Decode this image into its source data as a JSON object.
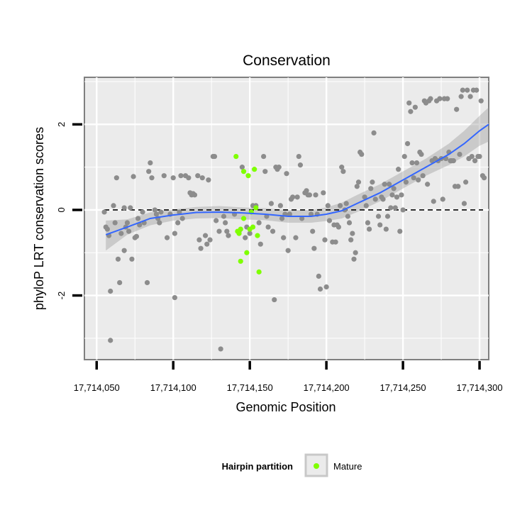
{
  "chart_data": {
    "type": "scatter",
    "title": "Conservation",
    "xlabel": "Genomic Position",
    "ylabel": "phyloP LRT conservation scores",
    "xlim": [
      17714042,
      17714306
    ],
    "ylim": [
      -3.5,
      3.1
    ],
    "x_ticks": [
      {
        "value": 17714050,
        "label": "17,714,050"
      },
      {
        "value": 17714100,
        "label": "17,714,100"
      },
      {
        "value": 17714150,
        "label": "17,714,150"
      },
      {
        "value": 17714200,
        "label": "17,714,200"
      },
      {
        "value": 17714250,
        "label": "17,714,250"
      },
      {
        "value": 17714300,
        "label": "17,714,300"
      }
    ],
    "y_ticks": [
      {
        "value": -2,
        "label": "-2"
      },
      {
        "value": 0,
        "label": "0"
      },
      {
        "value": 2,
        "label": "2"
      }
    ],
    "reference_line": {
      "y": 0,
      "style": "dashed",
      "color": "#000000"
    },
    "grid": true,
    "panel_background": "#ebebeb",
    "gray_points": {
      "color": "#8c8c8c",
      "points": [
        [
          17714055,
          -0.05
        ],
        [
          17714056,
          -0.4
        ],
        [
          17714057,
          -0.45
        ],
        [
          17714058,
          -0.6
        ],
        [
          17714059,
          -1.9
        ],
        [
          17714059,
          -3.05
        ],
        [
          17714061,
          0.1
        ],
        [
          17714062,
          -0.3
        ],
        [
          17714063,
          0.75
        ],
        [
          17714064,
          -1.15
        ],
        [
          17714065,
          -1.7
        ],
        [
          17714066,
          -0.55
        ],
        [
          17714068,
          -0.95
        ],
        [
          17714068,
          0.05
        ],
        [
          17714069,
          -0.4
        ],
        [
          17714070,
          -0.3
        ],
        [
          17714071,
          -0.5
        ],
        [
          17714072,
          0.05
        ],
        [
          17714073,
          -1.15
        ],
        [
          17714074,
          0.78
        ],
        [
          17714075,
          -0.65
        ],
        [
          17714076,
          -0.62
        ],
        [
          17714077,
          -0.2
        ],
        [
          17714078,
          -0.35
        ],
        [
          17714080,
          -0.05
        ],
        [
          17714081,
          -0.3
        ],
        [
          17714083,
          -1.7
        ],
        [
          17714084,
          0.9
        ],
        [
          17714085,
          1.1
        ],
        [
          17714086,
          0.75
        ],
        [
          17714088,
          0.0
        ],
        [
          17714089,
          -0.1
        ],
        [
          17714090,
          -0.2
        ],
        [
          17714091,
          -0.3
        ],
        [
          17714092,
          -0.05
        ],
        [
          17714094,
          0.8
        ],
        [
          17714096,
          -0.65
        ],
        [
          17714098,
          -0.1
        ],
        [
          17714100,
          0.75
        ],
        [
          17714101,
          -2.05
        ],
        [
          17714101,
          -0.55
        ],
        [
          17714103,
          -0.3
        ],
        [
          17714104,
          -0.05
        ],
        [
          17714105,
          0.8
        ],
        [
          17714106,
          -0.2
        ],
        [
          17714108,
          0.8
        ],
        [
          17714110,
          0.75
        ],
        [
          17714111,
          0.4
        ],
        [
          17714112,
          0.35
        ],
        [
          17714113,
          0.38
        ],
        [
          17714114,
          0.35
        ],
        [
          17714116,
          0.8
        ],
        [
          17714117,
          -0.7
        ],
        [
          17714118,
          -0.9
        ],
        [
          17714119,
          0.75
        ],
        [
          17714121,
          -0.6
        ],
        [
          17714122,
          -0.8
        ],
        [
          17714123,
          0.7
        ],
        [
          17714124,
          -0.7
        ],
        [
          17714126,
          1.25
        ],
        [
          17714127,
          1.25
        ],
        [
          17714128,
          -0.25
        ],
        [
          17714130,
          -0.5
        ],
        [
          17714131,
          -3.25
        ],
        [
          17714133,
          -0.15
        ],
        [
          17714134,
          -0.3
        ],
        [
          17714135,
          -0.5
        ],
        [
          17714136,
          -0.6
        ],
        [
          17714140,
          -0.1
        ],
        [
          17714143,
          -0.5
        ],
        [
          17714145,
          1.0
        ],
        [
          17714147,
          -0.65
        ],
        [
          17714148,
          -0.4
        ],
        [
          17714150,
          -0.55
        ],
        [
          17714152,
          0.1
        ],
        [
          17714154,
          0.1
        ],
        [
          17714156,
          -0.3
        ],
        [
          17714157,
          -0.8
        ],
        [
          17714159,
          1.25
        ],
        [
          17714160,
          0.9
        ],
        [
          17714161,
          -0.15
        ],
        [
          17714162,
          -0.4
        ],
        [
          17714164,
          0.15
        ],
        [
          17714165,
          -0.5
        ],
        [
          17714166,
          -2.1
        ],
        [
          17714167,
          1.0
        ],
        [
          17714168,
          0.95
        ],
        [
          17714169,
          1.0
        ],
        [
          17714170,
          0.1
        ],
        [
          17714171,
          -0.2
        ],
        [
          17714172,
          -0.65
        ],
        [
          17714173,
          -0.1
        ],
        [
          17714174,
          0.85
        ],
        [
          17714175,
          -0.95
        ],
        [
          17714176,
          -0.1
        ],
        [
          17714177,
          0.25
        ],
        [
          17714178,
          0.3
        ],
        [
          17714180,
          -0.65
        ],
        [
          17714181,
          0.3
        ],
        [
          17714182,
          1.25
        ],
        [
          17714183,
          1.05
        ],
        [
          17714184,
          -0.2
        ],
        [
          17714186,
          0.4
        ],
        [
          17714187,
          0.45
        ],
        [
          17714188,
          0.35
        ],
        [
          17714189,
          0.35
        ],
        [
          17714190,
          -0.1
        ],
        [
          17714191,
          -0.5
        ],
        [
          17714192,
          -0.9
        ],
        [
          17714193,
          0.35
        ],
        [
          17714194,
          -0.1
        ],
        [
          17714195,
          -1.55
        ],
        [
          17714196,
          -1.85
        ],
        [
          17714198,
          0.4
        ],
        [
          17714199,
          -0.7
        ],
        [
          17714200,
          -1.8
        ],
        [
          17714201,
          0.1
        ],
        [
          17714202,
          -0.25
        ],
        [
          17714204,
          -0.75
        ],
        [
          17714205,
          -0.35
        ],
        [
          17714206,
          -0.75
        ],
        [
          17714207,
          -0.35
        ],
        [
          17714208,
          -0.4
        ],
        [
          17714209,
          0.1
        ],
        [
          17714210,
          1.0
        ],
        [
          17714211,
          0.9
        ],
        [
          17714212,
          0.0
        ],
        [
          17714213,
          0.15
        ],
        [
          17714214,
          -0.15
        ],
        [
          17714215,
          -0.3
        ],
        [
          17714216,
          -0.7
        ],
        [
          17714217,
          -0.55
        ],
        [
          17714218,
          -1.15
        ],
        [
          17714219,
          -1.0
        ],
        [
          17714220,
          0.55
        ],
        [
          17714221,
          0.65
        ],
        [
          17714222,
          1.35
        ],
        [
          17714223,
          1.3
        ],
        [
          17714225,
          0.3
        ],
        [
          17714226,
          0.1
        ],
        [
          17714227,
          -0.3
        ],
        [
          17714228,
          -0.45
        ],
        [
          17714229,
          0.5
        ],
        [
          17714230,
          0.65
        ],
        [
          17714231,
          1.8
        ],
        [
          17714232,
          0.25
        ],
        [
          17714234,
          -0.15
        ],
        [
          17714235,
          -0.35
        ],
        [
          17714236,
          0.3
        ],
        [
          17714237,
          0.25
        ],
        [
          17714238,
          0.6
        ],
        [
          17714239,
          -0.45
        ],
        [
          17714240,
          -0.15
        ],
        [
          17714241,
          0.6
        ],
        [
          17714242,
          0.05
        ],
        [
          17714243,
          0.35
        ],
        [
          17714244,
          0.5
        ],
        [
          17714245,
          0.05
        ],
        [
          17714246,
          0.3
        ],
        [
          17714247,
          0.95
        ],
        [
          17714248,
          -0.5
        ],
        [
          17714249,
          0.35
        ],
        [
          17714250,
          0.0
        ],
        [
          17714251,
          1.25
        ],
        [
          17714252,
          0.65
        ],
        [
          17714253,
          1.55
        ],
        [
          17714254,
          2.5
        ],
        [
          17714255,
          2.3
        ],
        [
          17714256,
          1.1
        ],
        [
          17714257,
          0.75
        ],
        [
          17714258,
          2.4
        ],
        [
          17714259,
          1.1
        ],
        [
          17714260,
          0.7
        ],
        [
          17714261,
          1.35
        ],
        [
          17714262,
          1.3
        ],
        [
          17714263,
          0.8
        ],
        [
          17714264,
          2.55
        ],
        [
          17714265,
          2.5
        ],
        [
          17714266,
          0.6
        ],
        [
          17714267,
          2.55
        ],
        [
          17714268,
          2.6
        ],
        [
          17714269,
          1.15
        ],
        [
          17714270,
          0.2
        ],
        [
          17714271,
          1.2
        ],
        [
          17714272,
          2.55
        ],
        [
          17714273,
          1.15
        ],
        [
          17714274,
          2.6
        ],
        [
          17714275,
          1.2
        ],
        [
          17714276,
          0.25
        ],
        [
          17714277,
          2.6
        ],
        [
          17714278,
          1.2
        ],
        [
          17714279,
          2.6
        ],
        [
          17714280,
          1.35
        ],
        [
          17714281,
          1.15
        ],
        [
          17714282,
          1.15
        ],
        [
          17714283,
          1.15
        ],
        [
          17714284,
          0.55
        ],
        [
          17714285,
          2.35
        ],
        [
          17714286,
          0.55
        ],
        [
          17714287,
          1.3
        ],
        [
          17714288,
          2.65
        ],
        [
          17714289,
          2.8
        ],
        [
          17714290,
          0.15
        ],
        [
          17714291,
          0.65
        ],
        [
          17714292,
          2.8
        ],
        [
          17714293,
          1.2
        ],
        [
          17714294,
          2.65
        ],
        [
          17714295,
          1.25
        ],
        [
          17714296,
          2.8
        ],
        [
          17714297,
          1.15
        ],
        [
          17714298,
          2.8
        ],
        [
          17714299,
          1.25
        ],
        [
          17714300,
          1.25
        ],
        [
          17714301,
          2.55
        ],
        [
          17714302,
          0.8
        ],
        [
          17714303,
          0.75
        ]
      ]
    },
    "mature_points": {
      "color": "#7fff00",
      "points": [
        [
          17714141,
          1.25
        ],
        [
          17714146,
          0.9
        ],
        [
          17714149,
          0.8
        ],
        [
          17714153,
          0.95
        ],
        [
          17714142,
          -0.5
        ],
        [
          17714143,
          -0.55
        ],
        [
          17714144,
          -0.45
        ],
        [
          17714146,
          -0.2
        ],
        [
          17714148,
          -1.0
        ],
        [
          17714144,
          -1.2
        ],
        [
          17714150,
          -0.45
        ],
        [
          17714152,
          -0.4
        ],
        [
          17714155,
          -0.6
        ],
        [
          17714156,
          -1.45
        ],
        [
          17714151,
          -0.05
        ],
        [
          17714154,
          0.05
        ]
      ]
    },
    "smooth_line": {
      "color": "#3366ff",
      "band_color": "#999999",
      "x": [
        17714056,
        17714070,
        17714085,
        17714100,
        17714115,
        17714130,
        17714145,
        17714160,
        17714175,
        17714190,
        17714200,
        17714210,
        17714220,
        17714235,
        17714250,
        17714265,
        17714280,
        17714290,
        17714300,
        17714306
      ],
      "y": [
        -0.58,
        -0.4,
        -0.2,
        -0.12,
        -0.06,
        -0.05,
        -0.07,
        -0.1,
        -0.15,
        -0.15,
        -0.1,
        -0.02,
        0.15,
        0.4,
        0.7,
        1.0,
        1.3,
        1.55,
        1.85,
        2.0
      ],
      "upper": [
        -0.25,
        -0.22,
        -0.06,
        0.01,
        0.07,
        0.09,
        0.06,
        0.04,
        0.0,
        0.0,
        0.06,
        0.17,
        0.35,
        0.6,
        0.9,
        1.2,
        1.55,
        1.85,
        2.2,
        2.4
      ],
      "lower": [
        -0.95,
        -0.58,
        -0.36,
        -0.25,
        -0.2,
        -0.19,
        -0.22,
        -0.24,
        -0.3,
        -0.3,
        -0.26,
        -0.2,
        -0.05,
        0.2,
        0.5,
        0.8,
        1.05,
        1.25,
        1.5,
        1.6
      ]
    },
    "legend": {
      "title": "Hairpin partition",
      "entries": [
        {
          "label": "Mature",
          "color": "#7fff00"
        }
      ],
      "placement": "bottom"
    }
  }
}
